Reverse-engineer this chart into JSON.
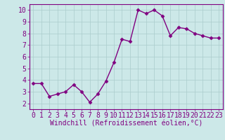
{
  "x": [
    0,
    1,
    2,
    3,
    4,
    5,
    6,
    7,
    8,
    9,
    10,
    11,
    12,
    13,
    14,
    15,
    16,
    17,
    18,
    19,
    20,
    21,
    22,
    23
  ],
  "y": [
    3.7,
    3.7,
    2.6,
    2.8,
    3.0,
    3.6,
    3.0,
    2.1,
    2.8,
    3.9,
    5.5,
    7.5,
    7.3,
    10.0,
    9.7,
    10.0,
    9.5,
    7.8,
    8.5,
    8.4,
    8.0,
    7.8,
    7.6,
    7.6
  ],
  "line_color": "#800080",
  "marker": "D",
  "marker_size": 2.5,
  "bg_color": "#cce8e8",
  "grid_color": "#aacccc",
  "xlabel": "Windchill (Refroidissement éolien,°C)",
  "xlim": [
    -0.5,
    23.5
  ],
  "ylim": [
    1.5,
    10.5
  ],
  "xticks": [
    0,
    1,
    2,
    3,
    4,
    5,
    6,
    7,
    8,
    9,
    10,
    11,
    12,
    13,
    14,
    15,
    16,
    17,
    18,
    19,
    20,
    21,
    22,
    23
  ],
  "yticks": [
    2,
    3,
    4,
    5,
    6,
    7,
    8,
    9,
    10
  ],
  "tick_label_color": "#800080",
  "xlabel_fontsize": 7,
  "tick_fontsize": 7,
  "line_width": 1.0
}
